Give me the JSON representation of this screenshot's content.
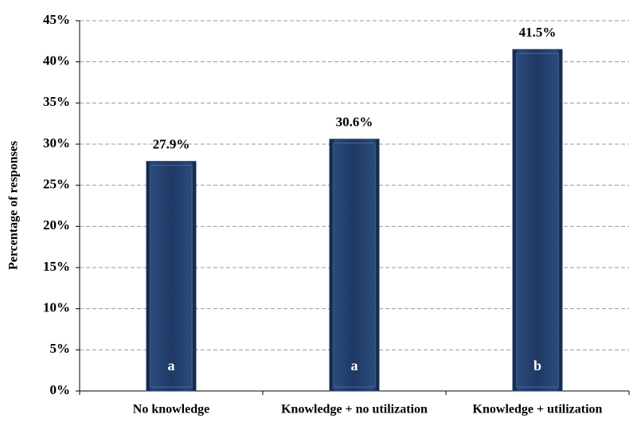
{
  "chart_data": {
    "type": "bar",
    "y_label": "Percentage of responses",
    "categories": [
      "No knowledge",
      "Knowledge + no utilization",
      "Knowledge + utilization"
    ],
    "values": [
      27.9,
      30.6,
      41.5
    ],
    "value_labels": [
      "27.9%",
      "30.6%",
      "41.5%"
    ],
    "annotations": [
      "a",
      "a",
      "b"
    ],
    "color": "#1f3864",
    "ylim": [
      0,
      45
    ],
    "yticks": [
      {
        "value": 0,
        "label": "0%"
      },
      {
        "value": 5,
        "label": "5%"
      },
      {
        "value": 10,
        "label": "10%"
      },
      {
        "value": 15,
        "label": "15%"
      },
      {
        "value": 20,
        "label": "20%"
      },
      {
        "value": 25,
        "label": "25%"
      },
      {
        "value": 30,
        "label": "30%"
      },
      {
        "value": 35,
        "label": "35%"
      },
      {
        "value": 40,
        "label": "40%"
      },
      {
        "value": 45,
        "label": "45%"
      }
    ],
    "grid": true
  }
}
